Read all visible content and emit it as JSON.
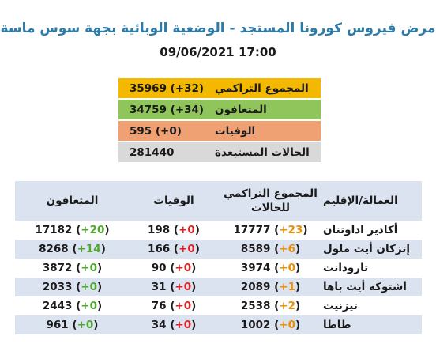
{
  "title": "مرض فيروس كورونا المستجد - الوضعية الوبائية بجهة سوس ماسة",
  "datetime": "09/06/2021 17:00",
  "summary": [
    {
      "label": "المجموع التراكمي",
      "value": "35969 (+32)",
      "color": "#f4b800"
    },
    {
      "label": "المتعافون",
      "value": "34759 (+34)",
      "color": "#8fc55a"
    },
    {
      "label": "الوفيات",
      "value": "595 (+0)",
      "color": "#f0a173"
    },
    {
      "label": "الحالات المستبعدة",
      "value": "281440",
      "color": "#d9d9d9"
    }
  ],
  "table": {
    "headers": {
      "region": "العمالة/الإقليم",
      "total_line1": "المجموع التراكمي",
      "total_line2": "للحالات",
      "deaths": "الوفيات",
      "recovered": "المتعافون"
    },
    "rows": [
      {
        "region": "أكادير اداوتنان",
        "total": "17777",
        "total_inc": "+23",
        "deaths": "198",
        "deaths_inc": "+0",
        "recovered": "17182",
        "recovered_inc": "+20"
      },
      {
        "region": "إنزكان أيت ملول",
        "total": "8589",
        "total_inc": "+6",
        "deaths": "166",
        "deaths_inc": "+0",
        "recovered": "8268",
        "recovered_inc": "+14"
      },
      {
        "region": "تارودانت",
        "total": "3974",
        "total_inc": "+0",
        "deaths": "90",
        "deaths_inc": "+0",
        "recovered": "3872",
        "recovered_inc": "+0"
      },
      {
        "region": "اشتوكة أيت باها",
        "total": "2089",
        "total_inc": "+1",
        "deaths": "31",
        "deaths_inc": "+0",
        "recovered": "2033",
        "recovered_inc": "+0"
      },
      {
        "region": "تيزنيت",
        "total": "2538",
        "total_inc": "+2",
        "deaths": "76",
        "deaths_inc": "+0",
        "recovered": "2443",
        "recovered_inc": "+0"
      },
      {
        "region": "طاطا",
        "total": "1002",
        "total_inc": "+0",
        "deaths": "34",
        "deaths_inc": "+0",
        "recovered": "961",
        "recovered_inc": "+0"
      }
    ]
  },
  "colors": {
    "title": "#2e7aa8",
    "increase_total": "#e8900c",
    "increase_deaths": "#e02020",
    "increase_recovered": "#4ea72e",
    "row_alt": "#dbe3f0"
  }
}
